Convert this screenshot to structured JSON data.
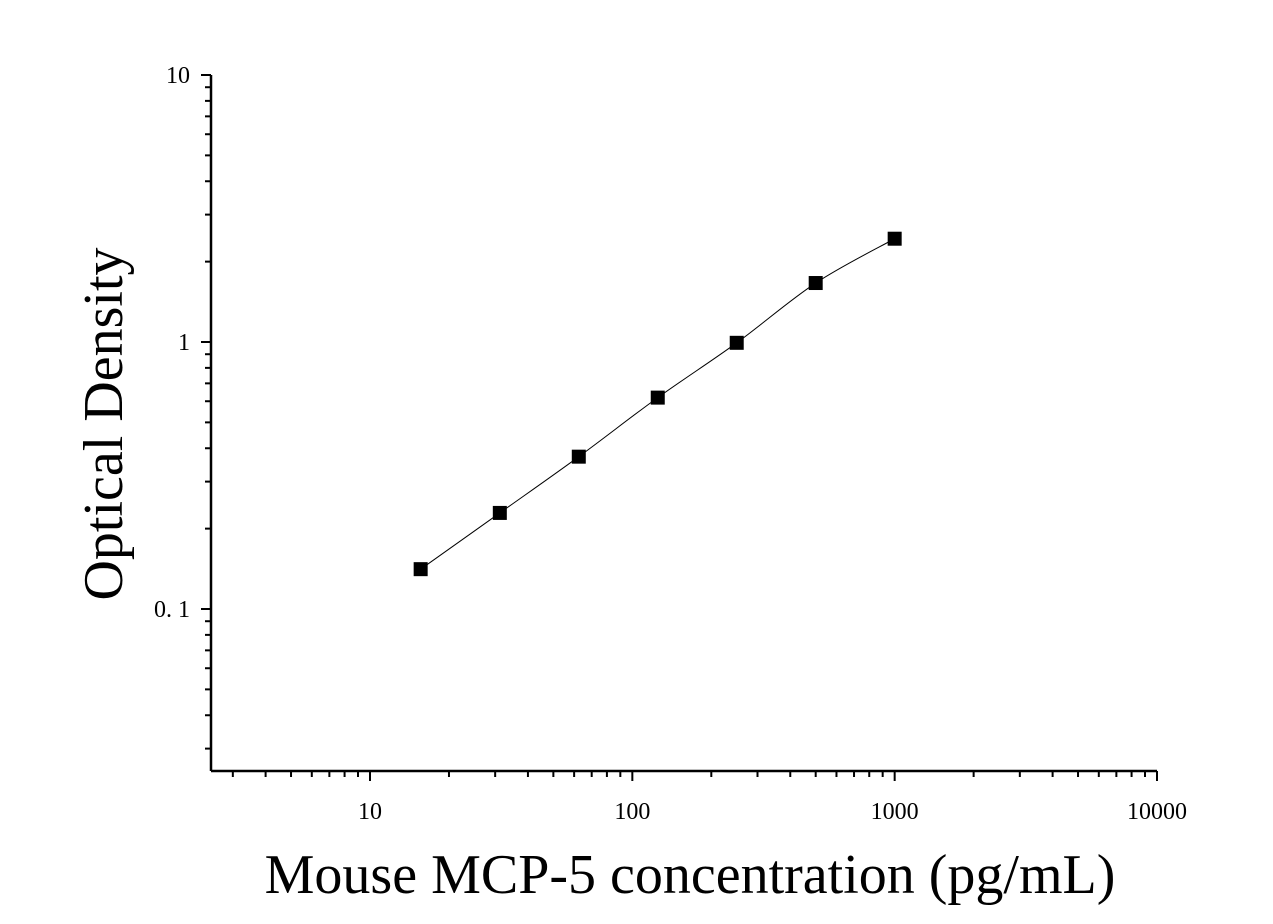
{
  "chart_data": {
    "type": "scatter",
    "xlabel": "Mouse MCP-5 concentration (pg/mL)",
    "ylabel": "Optical Density",
    "xscale": "log",
    "yscale": "log",
    "xlim": [
      2.5,
      10000
    ],
    "ylim": [
      0.025,
      10
    ],
    "x_tick_labels": [
      {
        "value": 10,
        "label": "10"
      },
      {
        "value": 100,
        "label": "100"
      },
      {
        "value": 1000,
        "label": "1000"
      },
      {
        "value": 10000,
        "label": "10000"
      }
    ],
    "y_tick_labels": [
      {
        "value": 0.1,
        "label": "0. 1"
      },
      {
        "value": 1,
        "label": "1"
      },
      {
        "value": 10,
        "label": "10"
      }
    ],
    "grid": false,
    "marker": "square",
    "fit_line": true,
    "points": [
      {
        "x": 15.6,
        "y": 0.141
      },
      {
        "x": 31.25,
        "y": 0.229
      },
      {
        "x": 62.5,
        "y": 0.372
      },
      {
        "x": 125,
        "y": 0.619
      },
      {
        "x": 250,
        "y": 0.993
      },
      {
        "x": 500,
        "y": 1.663
      },
      {
        "x": 1000,
        "y": 2.437
      }
    ],
    "colors": {
      "marker": "#000000",
      "axis": "#000000",
      "curve": "#000000",
      "background": "#ffffff"
    }
  }
}
